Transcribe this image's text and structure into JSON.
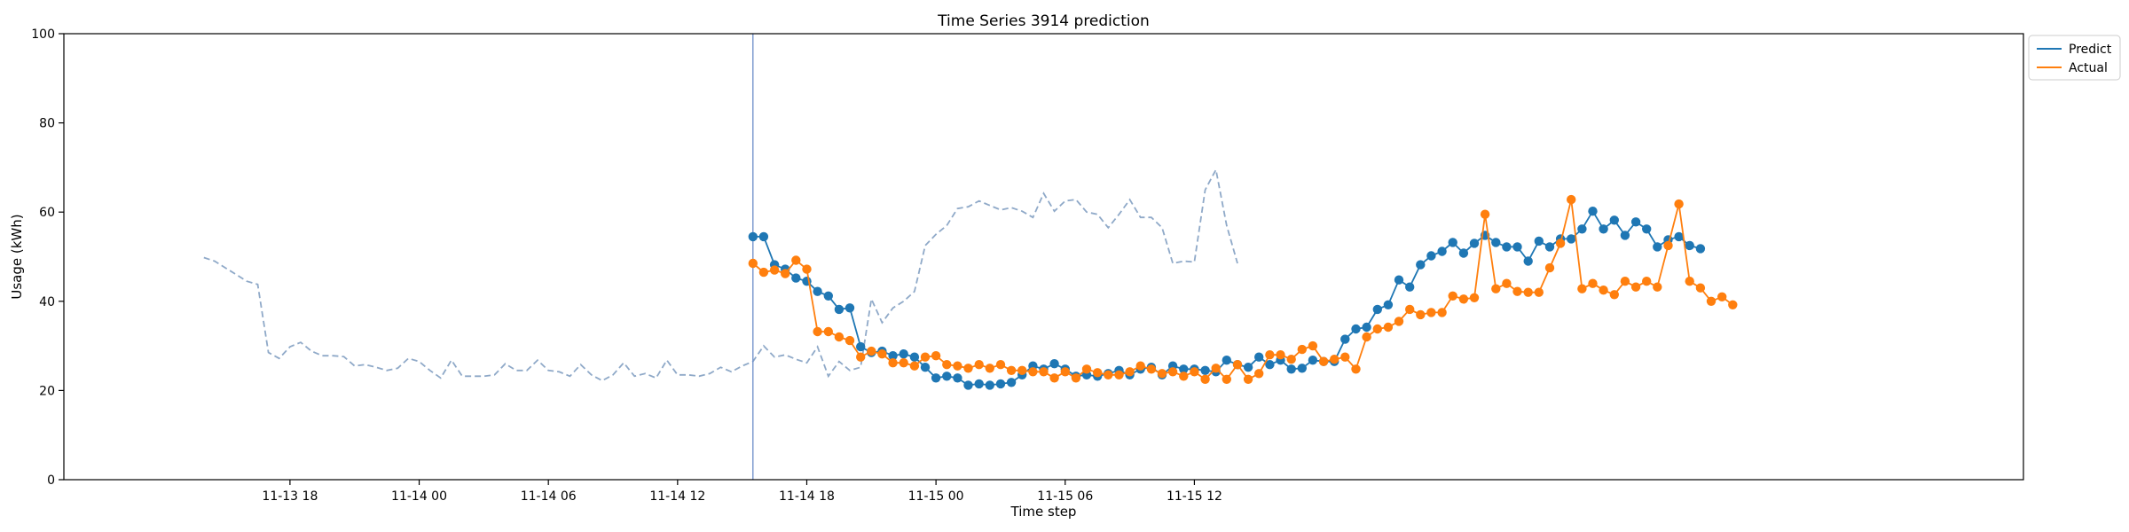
{
  "chart_data": {
    "type": "line",
    "title": "Time Series 3914 prediction",
    "xlabel": "Time step",
    "ylabel": "Usage (kWh)",
    "ylim": [
      0,
      100
    ],
    "yticks": [
      0,
      20,
      40,
      60,
      80,
      100
    ],
    "x_start": "2023-11-13 14:00",
    "step_hours": 0.5,
    "xlim_index": [
      -13,
      169
    ],
    "xticks": [
      {
        "index": 8,
        "label": "11-13 18"
      },
      {
        "index": 20,
        "label": "11-14 00"
      },
      {
        "index": 32,
        "label": "11-14 06"
      },
      {
        "index": 44,
        "label": "11-14 12"
      },
      {
        "index": 56,
        "label": "11-14 18"
      },
      {
        "index": 68,
        "label": "11-15 00"
      },
      {
        "index": 80,
        "label": "11-15 06"
      },
      {
        "index": 92,
        "label": "11-15 12"
      }
    ],
    "forecast_start_index": 51,
    "legend": {
      "position": "top-right"
    },
    "history": {
      "start_index": 0,
      "color": "#8fa9c8",
      "values": [
        49.8,
        49,
        47.5,
        46,
        44.5,
        43.8,
        28.5,
        27.2,
        29.8,
        30.8,
        28.8,
        27.8,
        27.8,
        27.6,
        25.5,
        25.8,
        25.2,
        24.5,
        25,
        27.2,
        26.5,
        24.5,
        22.8,
        26.8,
        23.2,
        23.2,
        23.2,
        23.5,
        26,
        24.5,
        24.5,
        26.8,
        24.5,
        24.2,
        23.2,
        25.8,
        23.5,
        22.2,
        23.5,
        26.2,
        23.2,
        23.8,
        22.8,
        26.8,
        23.5,
        23.5,
        23.2,
        23.8,
        25.2,
        24.2,
        25.5,
        26.5,
        30,
        27.5,
        28,
        27,
        26.2,
        29.8,
        23.2,
        26.5,
        24.5,
        25.2,
        40.5,
        35.2,
        38.5,
        40,
        42.2,
        52.5,
        55,
        57,
        60.8,
        61.2,
        62.5,
        61.5,
        60.5,
        61,
        60.2,
        58.8,
        64.2,
        60.2,
        62.5,
        62.8,
        60,
        59.5,
        56.5,
        59.5,
        62.8,
        58.8,
        58.8,
        56.5,
        48.5,
        49,
        48.8,
        65,
        69.5,
        57,
        48.5
      ]
    },
    "series": [
      {
        "name": "Predict",
        "color": "#1f77b4",
        "start_index": 51,
        "values": [
          54.5,
          54.5,
          48.2,
          47.2,
          45.2,
          44.5,
          42.2,
          41.2,
          38.2,
          38.5,
          29.8,
          28.5,
          28.8,
          27.8,
          28.2,
          27.5,
          25.2,
          22.8,
          23.2,
          22.8,
          21.2,
          21.5,
          21.2,
          21.5,
          21.8,
          23.5,
          25.5,
          24.8,
          26,
          24.8,
          23.2,
          23.5,
          23.2,
          23.8,
          24.5,
          23.5,
          24.8,
          25.2,
          23.5,
          25.5,
          24.8,
          24.8,
          24.5,
          24.2,
          26.8,
          25.8,
          25.2,
          27.5,
          25.8,
          26.8,
          24.8,
          25,
          26.8,
          26.5,
          26.5,
          31.5,
          33.8,
          34.2,
          38.2,
          39.2,
          44.8,
          43.2,
          48.2,
          50.2,
          51.2,
          53.2,
          50.8,
          53,
          54.8,
          53.2,
          52.2,
          52.2,
          49,
          53.5,
          52.2,
          54,
          54,
          56.2,
          60.2,
          56.2,
          58.2,
          54.8,
          57.8,
          56.2,
          52.2,
          53.8,
          54.5,
          52.5,
          51.8
        ]
      },
      {
        "name": "Actual",
        "color": "#ff7f0e",
        "start_index": 51,
        "values": [
          48.5,
          46.5,
          47,
          46.2,
          49.2,
          47.2,
          33.2,
          33.2,
          32,
          31.2,
          27.5,
          28.8,
          28.2,
          26.2,
          26.2,
          25.5,
          27.5,
          27.8,
          25.8,
          25.5,
          25,
          25.8,
          25,
          25.8,
          24.5,
          24.5,
          24.2,
          24.2,
          22.8,
          24.2,
          22.8,
          24.8,
          24,
          23.5,
          23.5,
          24.2,
          25.5,
          24.8,
          23.8,
          24.2,
          23.2,
          24.2,
          22.5,
          25,
          22.5,
          25.8,
          22.5,
          23.8,
          28,
          28,
          27,
          29.2,
          30,
          26.5,
          27,
          27.5,
          24.8,
          32,
          33.8,
          34.2,
          35.5,
          38.2,
          37,
          37.5,
          37.5,
          41.2,
          40.5,
          40.8,
          59.5,
          42.8,
          44,
          42.2,
          42,
          42,
          47.5,
          53,
          62.8,
          42.8,
          44,
          42.5,
          41.5,
          44.5,
          43.2,
          44.5,
          43.2,
          52.5,
          61.8,
          44.5,
          43,
          40,
          41,
          39.2
        ]
      }
    ]
  }
}
